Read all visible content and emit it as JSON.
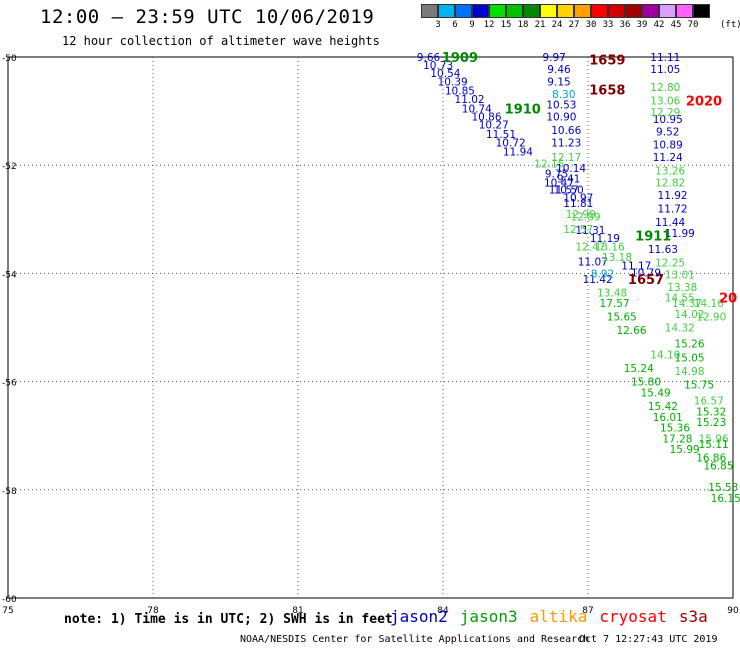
{
  "header": {
    "title": "12:00 – 23:59 UTC 10/06/2019",
    "subtitle": "12 hour collection of altimeter wave heights"
  },
  "color_scale": {
    "unit": "(ft)",
    "bins": [
      {
        "label": "3",
        "color": "#7a7a7a"
      },
      {
        "label": "6",
        "color": "#00b4f0"
      },
      {
        "label": "9",
        "color": "#0070ff"
      },
      {
        "label": "12",
        "color": "#0000d0"
      },
      {
        "label": "15",
        "color": "#00e000"
      },
      {
        "label": "18",
        "color": "#00c000"
      },
      {
        "label": "21",
        "color": "#008800"
      },
      {
        "label": "24",
        "color": "#ffff00"
      },
      {
        "label": "27",
        "color": "#ffd200"
      },
      {
        "label": "30",
        "color": "#ffa000"
      },
      {
        "label": "33",
        "color": "#ff0000"
      },
      {
        "label": "36",
        "color": "#d00000"
      },
      {
        "label": "39",
        "color": "#a00000"
      },
      {
        "label": "42",
        "color": "#a000a0"
      },
      {
        "label": "45",
        "color": "#d8a0ff"
      },
      {
        "label": "70",
        "color": "#ff60ff"
      },
      {
        "label": "",
        "color": "#000000"
      }
    ]
  },
  "chart_data": {
    "type": "scatter",
    "xlim": [
      75,
      90
    ],
    "ylim": [
      -60,
      -50
    ],
    "xticks": [
      "75",
      "78",
      "81",
      "84",
      "87",
      "90"
    ],
    "yticks": [
      "-50",
      "-52",
      "-54",
      "-56",
      "-58",
      "-60"
    ],
    "grid": true,
    "series": [
      {
        "name": "jason2",
        "color": "#0000c0",
        "points": [
          {
            "x": 83.7,
            "y": -50.0,
            "label": "9.66"
          },
          {
            "x": 83.9,
            "y": -50.15,
            "label": "10.73"
          },
          {
            "x": 84.05,
            "y": -50.3,
            "label": "10.54"
          },
          {
            "x": 84.2,
            "y": -50.45,
            "label": "10.39"
          },
          {
            "x": 84.35,
            "y": -50.62,
            "label": "10.85"
          },
          {
            "x": 84.55,
            "y": -50.78,
            "label": "11.02"
          },
          {
            "x": 84.7,
            "y": -50.95,
            "label": "10.74"
          },
          {
            "x": 84.9,
            "y": -51.1,
            "label": "10.86"
          },
          {
            "x": 85.05,
            "y": -51.25,
            "label": "10.27"
          },
          {
            "x": 85.2,
            "y": -51.42,
            "label": "11.51"
          },
          {
            "x": 85.4,
            "y": -51.58,
            "label": "10.72"
          },
          {
            "x": 85.55,
            "y": -51.75,
            "label": "11.94"
          },
          {
            "x": 86.3,
            "y": -50.0,
            "label": "9.97"
          },
          {
            "x": 86.4,
            "y": -50.22,
            "label": "9.46"
          },
          {
            "x": 86.4,
            "y": -50.45,
            "label": "9.15"
          },
          {
            "x": 86.45,
            "y": -50.88,
            "label": "10.53"
          },
          {
            "x": 86.45,
            "y": -51.1,
            "label": "10.90"
          },
          {
            "x": 86.55,
            "y": -51.35,
            "label": "10.66"
          },
          {
            "x": 86.55,
            "y": -51.58,
            "label": "11.23"
          },
          {
            "x": 86.65,
            "y": -52.05,
            "label": "10.14"
          },
          {
            "x": 86.35,
            "y": -52.15,
            "label": "9.75"
          },
          {
            "x": 86.6,
            "y": -52.25,
            "label": "9.41"
          },
          {
            "x": 86.4,
            "y": -52.32,
            "label": "10.47"
          },
          {
            "x": 86.6,
            "y": -52.45,
            "label": "10.50"
          },
          {
            "x": 86.5,
            "y": -52.45,
            "label": "11.57"
          },
          {
            "x": 86.8,
            "y": -52.6,
            "label": "10.97"
          },
          {
            "x": 86.8,
            "y": -52.7,
            "label": "11.81"
          },
          {
            "x": 87.05,
            "y": -53.2,
            "label": "11.31"
          },
          {
            "x": 87.35,
            "y": -53.35,
            "label": "11.19"
          },
          {
            "x": 87.1,
            "y": -53.78,
            "label": "11.07"
          },
          {
            "x": 87.2,
            "y": -54.1,
            "label": "11.42"
          },
          {
            "x": 88.0,
            "y": -53.85,
            "label": "11.17"
          },
          {
            "x": 88.2,
            "y": -53.98,
            "label": "10.79"
          },
          {
            "x": 88.6,
            "y": -50.0,
            "label": "11.11"
          },
          {
            "x": 88.6,
            "y": -50.22,
            "label": "11.05"
          },
          {
            "x": 88.65,
            "y": -51.15,
            "label": "10.95"
          },
          {
            "x": 88.65,
            "y": -51.38,
            "label": "9.52"
          },
          {
            "x": 88.65,
            "y": -51.62,
            "label": "10.89"
          },
          {
            "x": 88.65,
            "y": -51.85,
            "label": "11.24"
          },
          {
            "x": 88.75,
            "y": -52.55,
            "label": "11.92"
          },
          {
            "x": 88.75,
            "y": -52.8,
            "label": "11.72"
          },
          {
            "x": 88.7,
            "y": -53.05,
            "label": "11.44"
          },
          {
            "x": 88.9,
            "y": -53.25,
            "label": "11.99"
          },
          {
            "x": 88.55,
            "y": -53.55,
            "label": "11.63"
          }
        ]
      },
      {
        "name": "jason2",
        "color": "#00a0e0",
        "points": [
          {
            "x": 86.5,
            "y": -50.68,
            "label": "8.30"
          },
          {
            "x": 87.3,
            "y": -54.0,
            "label": "8.92"
          }
        ]
      },
      {
        "name": "jason3",
        "color": "#40d040",
        "points": [
          {
            "x": 86.55,
            "y": -51.85,
            "label": "12.17"
          },
          {
            "x": 86.2,
            "y": -51.97,
            "label": "12.15"
          },
          {
            "x": 86.85,
            "y": -52.9,
            "label": "12.99"
          },
          {
            "x": 86.95,
            "y": -52.95,
            "label": "12.89"
          },
          {
            "x": 86.8,
            "y": -53.18,
            "label": "12.57"
          },
          {
            "x": 87.05,
            "y": -53.5,
            "label": "12.47"
          },
          {
            "x": 87.45,
            "y": -53.5,
            "label": "13.16"
          },
          {
            "x": 87.6,
            "y": -53.7,
            "label": "13.18"
          },
          {
            "x": 87.5,
            "y": -54.35,
            "label": "13.48"
          },
          {
            "x": 88.6,
            "y": -50.55,
            "label": "12.80"
          },
          {
            "x": 88.6,
            "y": -50.8,
            "label": "13.06"
          },
          {
            "x": 88.6,
            "y": -51.02,
            "label": "12.29"
          },
          {
            "x": 88.7,
            "y": -52.1,
            "label": "13.26"
          },
          {
            "x": 88.7,
            "y": -52.32,
            "label": "12.82"
          },
          {
            "x": 88.7,
            "y": -53.8,
            "label": "12.25"
          },
          {
            "x": 88.9,
            "y": -54.02,
            "label": "13.01"
          },
          {
            "x": 88.95,
            "y": -54.25,
            "label": "13.38"
          },
          {
            "x": 88.9,
            "y": -54.45,
            "label": "14.55"
          },
          {
            "x": 89.05,
            "y": -54.55,
            "label": "14.37"
          },
          {
            "x": 89.1,
            "y": -54.75,
            "label": "14.02"
          },
          {
            "x": 89.5,
            "y": -54.55,
            "label": "14.16"
          },
          {
            "x": 89.55,
            "y": -54.8,
            "label": "12.90"
          },
          {
            "x": 88.9,
            "y": -55.0,
            "label": "14.32"
          },
          {
            "x": 88.6,
            "y": -55.5,
            "label": "14.10"
          },
          {
            "x": 89.1,
            "y": -55.8,
            "label": "14.98"
          },
          {
            "x": 89.5,
            "y": -56.35,
            "label": "16.57"
          },
          {
            "x": 89.6,
            "y": -57.05,
            "label": "15.96"
          }
        ]
      },
      {
        "name": "jason3",
        "color": "#00b000",
        "points": [
          {
            "x": 87.55,
            "y": -54.55,
            "label": "17.57"
          },
          {
            "x": 87.7,
            "y": -54.8,
            "label": "15.65"
          },
          {
            "x": 87.9,
            "y": -55.05,
            "label": "12.66"
          },
          {
            "x": 88.05,
            "y": -55.75,
            "label": "15.24"
          },
          {
            "x": 88.2,
            "y": -56.0,
            "label": "15.80"
          },
          {
            "x": 88.4,
            "y": -56.2,
            "label": "15.49"
          },
          {
            "x": 88.55,
            "y": -56.45,
            "label": "15.42"
          },
          {
            "x": 88.65,
            "y": -56.65,
            "label": "16.01"
          },
          {
            "x": 88.8,
            "y": -56.85,
            "label": "15.36"
          },
          {
            "x": 88.85,
            "y": -57.05,
            "label": "17.28"
          },
          {
            "x": 89.0,
            "y": -57.25,
            "label": "15.99"
          },
          {
            "x": 89.1,
            "y": -55.3,
            "label": "15.26"
          },
          {
            "x": 89.1,
            "y": -55.55,
            "label": "15.05"
          },
          {
            "x": 89.3,
            "y": -56.05,
            "label": "15.75"
          },
          {
            "x": 89.55,
            "y": -56.55,
            "label": "15.32"
          },
          {
            "x": 89.55,
            "y": -56.75,
            "label": "15.23"
          },
          {
            "x": 89.6,
            "y": -57.15,
            "label": "15.11"
          },
          {
            "x": 89.55,
            "y": -57.4,
            "label": "16.86"
          },
          {
            "x": 89.7,
            "y": -57.55,
            "label": "16.85"
          },
          {
            "x": 89.8,
            "y": -57.95,
            "label": "15.53"
          },
          {
            "x": 89.85,
            "y": -58.15,
            "label": "16.15"
          }
        ]
      }
    ],
    "pass_labels": [
      {
        "x": 84.35,
        "y": -50.0,
        "label": "1909",
        "color": "#008800"
      },
      {
        "x": 85.65,
        "y": -50.95,
        "label": "1910",
        "color": "#008800"
      },
      {
        "x": 87.4,
        "y": -50.05,
        "label": "1659",
        "color": "#800000"
      },
      {
        "x": 87.4,
        "y": -50.6,
        "label": "1658",
        "color": "#800000"
      },
      {
        "x": 89.4,
        "y": -50.8,
        "label": "2020",
        "color": "#ff0000"
      },
      {
        "x": 88.35,
        "y": -53.3,
        "label": "1911",
        "color": "#008800"
      },
      {
        "x": 88.2,
        "y": -54.1,
        "label": "1657",
        "color": "#800000"
      },
      {
        "x": 89.9,
        "y": -54.45,
        "label": "20",
        "color": "#ff0000"
      }
    ]
  },
  "footer": {
    "note": "note: 1) Time is in UTC; 2) SWH is in feet",
    "legend": [
      {
        "label": "jason2",
        "color": "#0000c8"
      },
      {
        "label": "jason3",
        "color": "#00a000"
      },
      {
        "label": "altika",
        "color": "#ff9900"
      },
      {
        "label": "cryosat",
        "color": "#ff0000"
      },
      {
        "label": "s3a",
        "color": "#a00000"
      }
    ],
    "credit": "NOAA/NESDIS Center for Satellite Applications and Research",
    "timestamp": "Oct  7 12:27:43 UTC 2019"
  }
}
